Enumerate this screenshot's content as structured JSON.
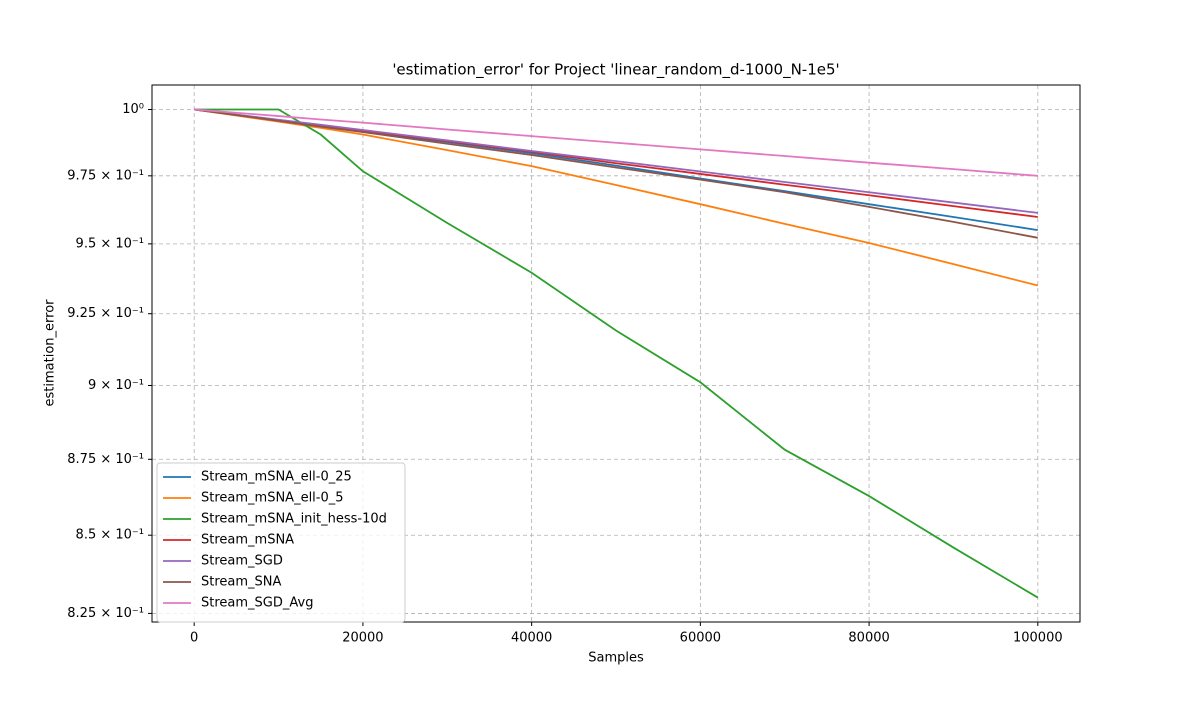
{
  "chart_data": {
    "type": "line",
    "title": "'estimation_error' for Project 'linear_random_d-1000_N-1e5'",
    "x_label": "Samples",
    "y_label": "estimation_error",
    "x": [
      0,
      10000,
      15000,
      20000,
      30000,
      40000,
      50000,
      60000,
      70000,
      80000,
      90000,
      100000
    ],
    "series": [
      {
        "name": "Stream_mSNA_ell-0_25",
        "color": "#1f77b4",
        "values": [
          1,
          0.9958,
          0.9937,
          0.9917,
          0.9877,
          0.9835,
          0.9788,
          0.974,
          0.9693,
          0.9645,
          0.9598,
          0.955
        ]
      },
      {
        "name": "Stream_mSNA_ell-0_5",
        "color": "#ff7f0e",
        "values": [
          1,
          0.9954,
          0.993,
          0.9905,
          0.9846,
          0.9786,
          0.9716,
          0.9645,
          0.9573,
          0.9503,
          0.9427,
          0.935
        ]
      },
      {
        "name": "Stream_mSNA_init_hess-10d",
        "color": "#2ca02c",
        "values": [
          1,
          1,
          0.9905,
          0.9767,
          0.9576,
          0.9396,
          0.9191,
          0.9011,
          0.8782,
          0.8628,
          0.846,
          0.83
        ]
      },
      {
        "name": "Stream_mSNA",
        "color": "#d62728",
        "values": [
          1,
          0.996,
          0.994,
          0.992,
          0.988,
          0.984,
          0.9797,
          0.9757,
          0.9717,
          0.9678,
          0.9638,
          0.9598
        ]
      },
      {
        "name": "Stream_SGD",
        "color": "#9467bd",
        "values": [
          1,
          0.9961,
          0.9942,
          0.9922,
          0.9883,
          0.9843,
          0.9805,
          0.9766,
          0.9727,
          0.9689,
          0.9651,
          0.9613
        ]
      },
      {
        "name": "Stream_SNA",
        "color": "#8c564b",
        "values": [
          1,
          0.9957,
          0.9935,
          0.9914,
          0.987,
          0.9828,
          0.9781,
          0.9736,
          0.9689,
          0.9635,
          0.958,
          0.9522
        ]
      },
      {
        "name": "Stream_SGD_Avg",
        "color": "#e377c2",
        "values": [
          1,
          0.9975,
          0.9962,
          0.995,
          0.9924,
          0.9899,
          0.9874,
          0.9849,
          0.9824,
          0.9799,
          0.9775,
          0.975
        ]
      }
    ],
    "xlim": [
      -5000,
      105000
    ],
    "xticks": [
      0,
      20000,
      40000,
      60000,
      80000,
      100000
    ],
    "ylim": [
      0.8223,
      1.0094
    ],
    "y_scale": "log",
    "yticks": [
      {
        "value": 0.825,
        "label": "8.25 × 10⁻¹"
      },
      {
        "value": 0.85,
        "label": "8.5 × 10⁻¹"
      },
      {
        "value": 0.875,
        "label": "8.75 × 10⁻¹"
      },
      {
        "value": 0.9,
        "label": "9 × 10⁻¹"
      },
      {
        "value": 0.925,
        "label": "9.25 × 10⁻¹"
      },
      {
        "value": 0.95,
        "label": "9.5 × 10⁻¹"
      },
      {
        "value": 0.975,
        "label": "9.75 × 10⁻¹"
      },
      {
        "value": 1,
        "label": "10⁰"
      }
    ],
    "grid": true,
    "legend": "lower left"
  }
}
